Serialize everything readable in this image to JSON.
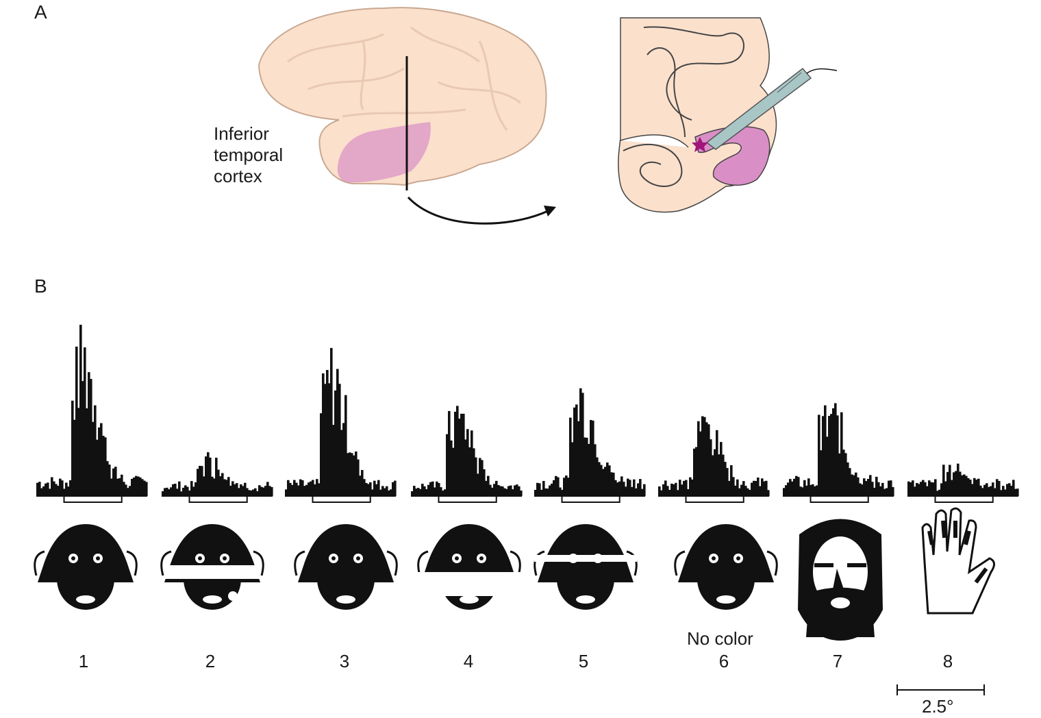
{
  "panels": {
    "a_letter": "A",
    "b_letter": "B"
  },
  "region_label": {
    "line1": "Inferior",
    "line2": "temporal",
    "line3": "cortex"
  },
  "colors": {
    "brain_fill": "#fbe0cc",
    "brain_outline": "#c9a891",
    "it_region": "#d98fc6",
    "electrode": "#a9c6c7",
    "recording_site": "#a0167a",
    "ink": "#111111"
  },
  "stimuli": [
    {
      "number": "1",
      "icon": "monkey-face-icon",
      "note": ""
    },
    {
      "number": "2",
      "icon": "scrambled-monkey-face-icon",
      "note": ""
    },
    {
      "number": "3",
      "icon": "monkey-face-no-cheeks-icon",
      "note": ""
    },
    {
      "number": "4",
      "icon": "monkey-face-partial-icon",
      "note": ""
    },
    {
      "number": "5",
      "icon": "monkey-face-band-removed-icon",
      "note": ""
    },
    {
      "number": "6",
      "icon": "monkey-face-grayscale-icon",
      "note": "No color"
    },
    {
      "number": "7",
      "icon": "human-face-icon",
      "note": ""
    },
    {
      "number": "8",
      "icon": "hand-icon",
      "note": ""
    }
  ],
  "scale_bar": {
    "label": "2.5°"
  }
}
